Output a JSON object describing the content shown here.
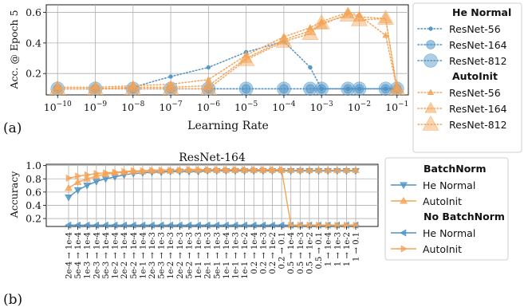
{
  "colors": {
    "he": "#4d93c6",
    "auto": "#f5a356",
    "grid": "#b0b0b0",
    "axis": "#000000"
  },
  "panel_labels": {
    "a": "(a)",
    "b": "(b)"
  },
  "chart_data": [
    {
      "type": "line",
      "xscale": "log",
      "xlabel": "Learning Rate",
      "ylabel": "Acc. @ Epoch 5",
      "xlim": [
        5e-11,
        0.2
      ],
      "ylim": [
        0.06,
        0.65
      ],
      "x_ticks": [
        1e-10,
        1e-09,
        1e-08,
        1e-07,
        1e-06,
        1e-05,
        0.0001,
        0.001,
        0.01,
        0.1
      ],
      "x_tick_exponents": [
        "−10",
        "−9",
        "−8",
        "−7",
        "−6",
        "−5",
        "−4",
        "−3",
        "−2",
        "−1"
      ],
      "y_ticks": [
        0.2,
        0.4,
        0.6
      ],
      "y_tick_labels": [
        "0.2",
        "0.4",
        "0.6"
      ],
      "grid": true,
      "legend_groups": [
        {
          "title": "He Normal",
          "entries": [
            "ResNet-56",
            "ResNet-164",
            "ResNet-812"
          ]
        },
        {
          "title": "AutoInit",
          "entries": [
            "ResNet-56",
            "ResNet-164",
            "ResNet-812"
          ]
        }
      ],
      "series": [
        {
          "name": "ResNet-56",
          "group": "He Normal",
          "x": [
            1e-10,
            1e-09,
            1e-08,
            1e-07,
            1e-06,
            1e-05,
            0.0001,
            0.0005,
            0.001,
            0.005,
            0.01,
            0.05,
            0.1
          ],
          "y": [
            0.1,
            0.1,
            0.11,
            0.18,
            0.24,
            0.34,
            0.41,
            0.24,
            0.1,
            0.1,
            0.1,
            0.1,
            0.1
          ]
        },
        {
          "name": "ResNet-164",
          "group": "He Normal",
          "x": [
            1e-10,
            1e-09,
            1e-08,
            1e-07,
            1e-06,
            1e-05,
            0.0001,
            0.0005,
            0.001,
            0.005,
            0.01,
            0.05,
            0.1
          ],
          "y": [
            0.1,
            0.1,
            0.1,
            0.1,
            0.1,
            0.1,
            0.1,
            0.1,
            0.1,
            0.1,
            0.1,
            0.1,
            0.1
          ]
        },
        {
          "name": "ResNet-812",
          "group": "He Normal",
          "x": [
            1e-10,
            1e-09,
            1e-08,
            1e-07,
            1e-06,
            1e-05,
            0.0001,
            0.0005,
            0.001,
            0.005,
            0.01,
            0.05,
            0.1
          ],
          "y": [
            0.1,
            0.1,
            0.1,
            0.1,
            0.1,
            0.1,
            0.1,
            0.1,
            0.1,
            0.1,
            0.1,
            0.1,
            0.1
          ]
        },
        {
          "name": "ResNet-56",
          "group": "AutoInit",
          "x": [
            1e-10,
            1e-09,
            1e-08,
            1e-07,
            1e-06,
            1e-05,
            0.0001,
            0.0005,
            0.001,
            0.005,
            0.01,
            0.05,
            0.1
          ],
          "y": [
            0.11,
            0.11,
            0.12,
            0.13,
            0.16,
            0.32,
            0.44,
            0.5,
            0.54,
            0.6,
            0.58,
            0.45,
            0.1
          ]
        },
        {
          "name": "ResNet-164",
          "group": "AutoInit",
          "x": [
            1e-10,
            1e-09,
            1e-08,
            1e-07,
            1e-06,
            1e-05,
            0.0001,
            0.0005,
            0.001,
            0.005,
            0.01,
            0.05,
            0.1
          ],
          "y": [
            0.1,
            0.1,
            0.11,
            0.11,
            0.12,
            0.3,
            0.42,
            0.48,
            0.52,
            0.59,
            0.57,
            0.56,
            0.1
          ]
        },
        {
          "name": "ResNet-812",
          "group": "AutoInit",
          "x": [
            1e-10,
            1e-09,
            1e-08,
            1e-07,
            1e-06,
            1e-05,
            0.0001,
            0.0005,
            0.001,
            0.005,
            0.01,
            0.05,
            0.1
          ],
          "y": [
            0.1,
            0.1,
            0.1,
            0.1,
            0.1,
            0.29,
            0.41,
            0.46,
            0.53,
            0.58,
            0.55,
            0.56,
            0.1
          ]
        }
      ]
    },
    {
      "type": "line",
      "title": "ResNet-164",
      "ylabel": "Accuracy",
      "ylim": [
        0.08,
        1.02
      ],
      "y_ticks": [
        0.2,
        0.4,
        0.6,
        0.8,
        1.0
      ],
      "y_tick_labels": [
        "0.2",
        "0.4",
        "0.6",
        "0.8",
        "1.0"
      ],
      "grid": true,
      "categories": [
        "2e-4 → 1e-4",
        "5e-4 → 1e-4",
        "1e-3 → 1e-4",
        "2e-3 → 1e-4",
        "5e-3 → 1e-4",
        "1e-2 → 1e-4",
        "2e-2 → 1e-4",
        "5e-2 → 1e-4",
        "1e-1 → 1e-4",
        "2e-3 → 1e-3",
        "5e-3 → 1e-3",
        "1e-2 → 1e-3",
        "2e-2 → 1e-3",
        "5e-2 → 1e-3",
        "1e-1 → 1e-3",
        "2e-1 → 1e-3",
        "5e-1 → 1e-3",
        "1e-1 → 1e-4",
        "1e-1 → 1e-3",
        "1e-1 → 1e-2",
        "0.2 → 1e-4",
        "0.2 → 1e-3",
        "0.2 → 1e-2",
        "0.2 → 0.1",
        "0.5 → 1e-4",
        "0.5 → 1e-3",
        "0.5 → 1e-2",
        "0.5 → 0.1",
        "1 → 1e-4",
        "1 → 1e-3",
        "1 → 1e-2",
        "1 → 0.1"
      ],
      "legend_groups": [
        {
          "title": "BatchNorm",
          "entries": [
            "He Normal",
            "AutoInit"
          ]
        },
        {
          "title": "No BatchNorm",
          "entries": [
            "He Normal",
            "AutoInit"
          ]
        }
      ],
      "series": [
        {
          "name": "He Normal",
          "group": "BatchNorm",
          "values": [
            0.52,
            0.63,
            0.7,
            0.76,
            0.8,
            0.83,
            0.86,
            0.88,
            0.89,
            0.9,
            0.9,
            0.91,
            0.91,
            0.91,
            0.91,
            0.92,
            0.92,
            0.92,
            0.92,
            0.92,
            0.92,
            0.92,
            0.92,
            0.92,
            0.92,
            0.92,
            0.92,
            0.92,
            0.92,
            0.92,
            0.92,
            0.92
          ]
        },
        {
          "name": "AutoInit",
          "group": "BatchNorm",
          "values": [
            0.66,
            0.75,
            0.8,
            0.84,
            0.87,
            0.89,
            0.9,
            0.91,
            0.91,
            0.92,
            0.92,
            0.92,
            0.93,
            0.93,
            0.93,
            0.93,
            0.93,
            0.93,
            0.93,
            0.93,
            0.93,
            0.93,
            0.93,
            0.93,
            0.93,
            0.93,
            0.93,
            0.93,
            0.93,
            0.93,
            0.93,
            0.93
          ]
        },
        {
          "name": "He Normal",
          "group": "No BatchNorm",
          "values": [
            0.1,
            0.1,
            0.1,
            0.1,
            0.1,
            0.1,
            0.1,
            0.1,
            0.1,
            0.1,
            0.1,
            0.1,
            0.1,
            0.1,
            0.1,
            0.1,
            0.1,
            0.1,
            0.1,
            0.1,
            0.1,
            0.1,
            0.1,
            0.1,
            0.1,
            0.1,
            0.1,
            0.1,
            0.1,
            0.1,
            0.1,
            0.1
          ]
        },
        {
          "name": "AutoInit",
          "group": "No BatchNorm",
          "values": [
            0.81,
            0.84,
            0.86,
            0.88,
            0.89,
            0.9,
            0.91,
            0.92,
            0.92,
            0.93,
            0.93,
            0.93,
            0.93,
            0.94,
            0.94,
            0.94,
            0.94,
            0.94,
            0.94,
            0.94,
            0.94,
            0.94,
            0.94,
            0.94,
            0.1,
            0.1,
            0.1,
            0.1,
            0.1,
            0.1,
            0.1,
            0.1
          ]
        }
      ]
    }
  ]
}
